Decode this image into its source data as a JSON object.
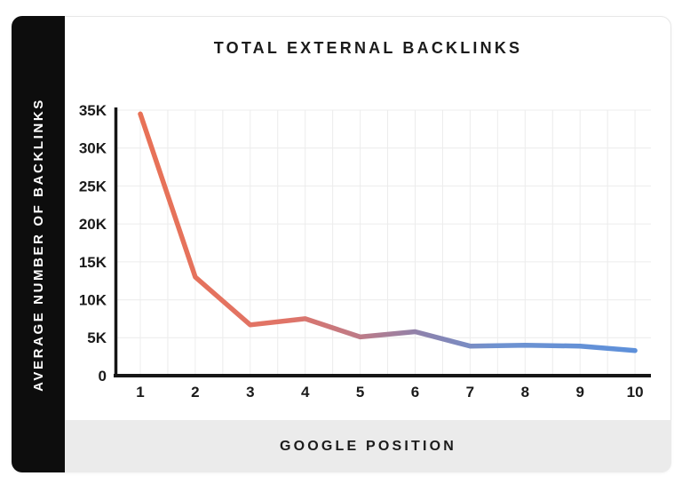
{
  "sidebar": {
    "label": "AVERAGE NUMBER OF BACKLINKS"
  },
  "header": {
    "title": "TOTAL EXTERNAL BACKLINKS"
  },
  "footer": {
    "label": "GOOGLE POSITION"
  },
  "colors": {
    "sidebar_bg": "#0d0d0d",
    "footer_bg": "#ebebeb",
    "card_border": "#e7e7e7",
    "grid": "#ececec",
    "axis": "#161616",
    "text": "#1a1a1a",
    "line_gradient": [
      {
        "offset": 0,
        "color": "#e87156"
      },
      {
        "offset": 0.3,
        "color": "#e07468"
      },
      {
        "offset": 0.45,
        "color": "#bb7b89"
      },
      {
        "offset": 0.57,
        "color": "#8c82ad"
      },
      {
        "offset": 0.72,
        "color": "#6f92d0"
      },
      {
        "offset": 1,
        "color": "#5d90da"
      }
    ]
  },
  "chart_data": {
    "type": "line",
    "title": "TOTAL EXTERNAL BACKLINKS",
    "xlabel": "GOOGLE POSITION",
    "ylabel": "AVERAGE NUMBER OF BACKLINKS",
    "x": [
      1,
      2,
      3,
      4,
      5,
      6,
      7,
      8,
      9,
      10
    ],
    "values": [
      34500,
      13000,
      6700,
      7500,
      5100,
      5800,
      3900,
      4000,
      3900,
      3300
    ],
    "x_ticks": [
      "1",
      "2",
      "3",
      "4",
      "5",
      "6",
      "7",
      "8",
      "9",
      "10"
    ],
    "y_ticks": [
      "0",
      "5K",
      "10K",
      "15K",
      "20K",
      "25K",
      "30K",
      "35K"
    ],
    "y_tick_step": 5000,
    "ylim": [
      0,
      35000
    ],
    "grid": true,
    "legend": false
  }
}
